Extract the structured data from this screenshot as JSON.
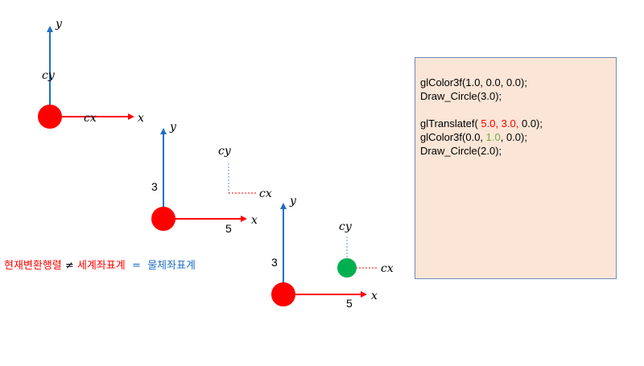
{
  "colors": {
    "axis": "#1f6fc4",
    "x_axis": "#ff0000",
    "circle_red": "#ff0000",
    "circle_green": "#00b050",
    "dashed": "#5b9bd5",
    "code_bg": "#fbe5d6"
  },
  "diagrams": {
    "d1": {
      "y_label": "y",
      "x_label": "x",
      "cy_label": "cy",
      "cx_label": "cx"
    },
    "d2": {
      "y_label": "y",
      "x_label": "x",
      "ty_value": "3",
      "tx_value": "5",
      "cy_label": "cy",
      "cx_label": "cx"
    },
    "d3": {
      "y_label": "y",
      "x_label": "x",
      "ty_value": "3",
      "tx_value": "5",
      "cy_label": "cy",
      "cx_label": "cx"
    }
  },
  "caption": {
    "left": "현재변환행렬",
    "neq": "≠",
    "mid": "세계좌표계",
    "eq": "=",
    "right": "물체좌표계"
  },
  "code": {
    "line1": "glColor3f(1.0, 0.0, 0.0);",
    "line2": "Draw_Circle(3.0);",
    "line3_pre": "glTranslatef( ",
    "line3_red": "5.0, 3.0,",
    "line3_post": " 0.0);",
    "line4_pre": "glColor3f(0.0, ",
    "line4_green": "1.0",
    "line4_post": ", 0.0);",
    "line5": "Draw_Circle(2.0);"
  }
}
